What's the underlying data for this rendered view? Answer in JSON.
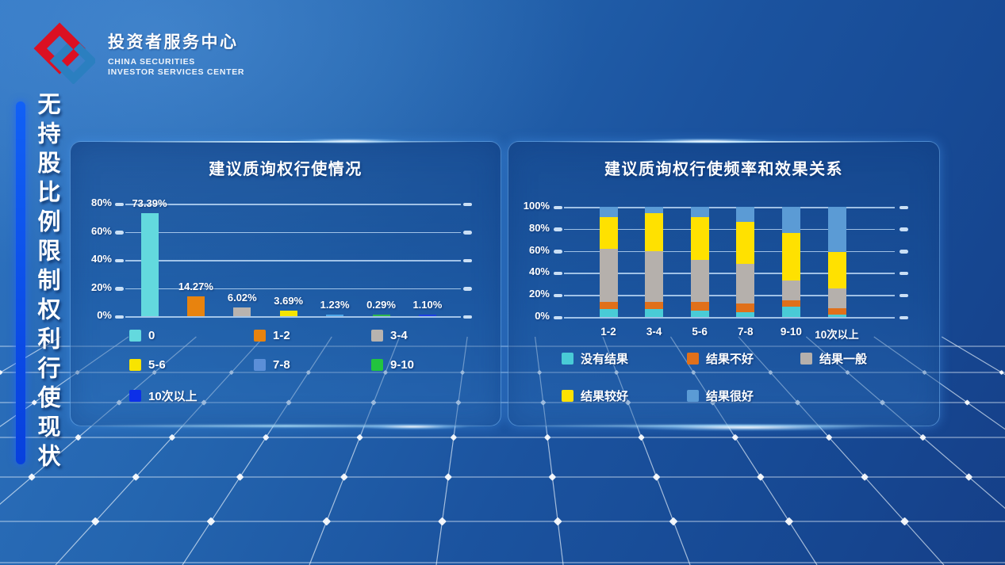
{
  "header": {
    "logo": {
      "title": "投资者服务中心",
      "subtitle_line1": "CHINA SECURITIES",
      "subtitle_line2": "INVESTOR SERVICES CENTER",
      "mark_red": "#db1022",
      "mark_blue": "#2b7fc0"
    }
  },
  "sidebar": {
    "title": "无持股比例限制权利行使现状",
    "accent_color": "#0d4cec"
  },
  "chart_data": [
    {
      "type": "bar",
      "title": "建议质询权行使情况",
      "categories": [
        "0",
        "1-2",
        "3-4",
        "5-6",
        "7-8",
        "9-10",
        "10次以上"
      ],
      "values": [
        73.39,
        14.27,
        6.02,
        3.69,
        1.23,
        0.29,
        1.1
      ],
      "data_labels": [
        "73.39%",
        "14.27%",
        "6.02%",
        "3.69%",
        "1.23%",
        "0.29%",
        "1.10%"
      ],
      "bar_colors": [
        "#63d9de",
        "#e8830e",
        "#b8b3af",
        "#f6e400",
        "#4da6e8",
        "#2db84a",
        "#1b3fe0"
      ],
      "ylim": [
        0,
        80
      ],
      "ytick_values": [
        0,
        20,
        40,
        60,
        80
      ],
      "ytick_labels": [
        "0%",
        "20%",
        "40%",
        "60%",
        "80%"
      ],
      "grid": "horizontal",
      "legend_position": "bottom",
      "legend": [
        {
          "label": "0",
          "color": "#63d9de"
        },
        {
          "label": "1-2",
          "color": "#e8830e"
        },
        {
          "label": "3-4",
          "color": "#b8b3af"
        },
        {
          "label": "5-6",
          "color": "#f8e400"
        },
        {
          "label": "7-8",
          "color": "#5b8fd8"
        },
        {
          "label": "9-10",
          "color": "#22c43e"
        },
        {
          "label": "10次以上",
          "color": "#0c2fe8"
        }
      ]
    },
    {
      "type": "stacked-bar",
      "title": "建议质询权行使频率和效果关系",
      "categories": [
        "1-2",
        "3-4",
        "5-6",
        "7-8",
        "9-10",
        "10次以上"
      ],
      "series": [
        {
          "name": "没有结果",
          "color": "#49cbd6",
          "values": [
            7,
            7,
            6,
            4,
            9,
            2
          ]
        },
        {
          "name": "结果不好",
          "color": "#e0701a",
          "values": [
            7,
            7,
            8,
            8,
            6,
            6
          ]
        },
        {
          "name": "结果一般",
          "color": "#b5b0ac",
          "values": [
            48,
            46,
            38,
            36,
            18,
            18
          ]
        },
        {
          "name": "结果较好",
          "color": "#ffe100",
          "values": [
            29,
            34,
            39,
            38,
            43,
            33
          ]
        },
        {
          "name": "结果很好",
          "color": "#5b9bd5",
          "values": [
            9,
            6,
            9,
            14,
            24,
            41
          ]
        }
      ],
      "ylim": [
        0,
        100
      ],
      "ytick_values": [
        0,
        20,
        40,
        60,
        80,
        100
      ],
      "ytick_labels": [
        "0%",
        "20%",
        "40%",
        "60%",
        "80%",
        "100%"
      ],
      "grid": "horizontal",
      "legend_position": "bottom"
    }
  ]
}
